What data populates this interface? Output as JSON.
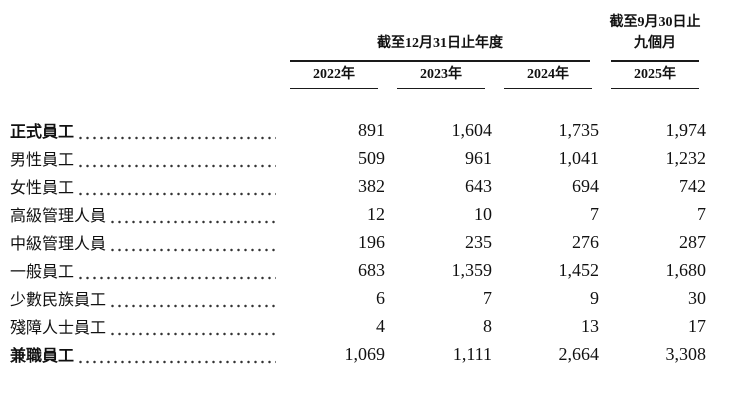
{
  "table": {
    "header": {
      "annual_group_title": "截至12月31日止年度",
      "interim_group_line1": "截至9月30日止",
      "interim_group_line2": "九個月",
      "years": [
        "2022年",
        "2023年",
        "2024年",
        "2025年"
      ]
    },
    "rows": [
      {
        "label": "正式員工",
        "bold": true,
        "values": [
          "891",
          "1,604",
          "1,735",
          "1,974"
        ]
      },
      {
        "label": "男性員工",
        "bold": false,
        "values": [
          "509",
          "961",
          "1,041",
          "1,232"
        ]
      },
      {
        "label": "女性員工",
        "bold": false,
        "values": [
          "382",
          "643",
          "694",
          "742"
        ]
      },
      {
        "label": "高級管理人員",
        "bold": false,
        "values": [
          "12",
          "10",
          "7",
          "7"
        ]
      },
      {
        "label": "中級管理人員",
        "bold": false,
        "values": [
          "196",
          "235",
          "276",
          "287"
        ]
      },
      {
        "label": "一般員工",
        "bold": false,
        "values": [
          "683",
          "1,359",
          "1,452",
          "1,680"
        ]
      },
      {
        "label": "少數民族員工",
        "bold": false,
        "values": [
          "6",
          "7",
          "9",
          "30"
        ]
      },
      {
        "label": "殘障人士員工",
        "bold": false,
        "values": [
          "4",
          "8",
          "13",
          "17"
        ]
      },
      {
        "label": "兼職員工",
        "bold": true,
        "values": [
          "1,069",
          "1,111",
          "2,664",
          "3,308"
        ]
      }
    ]
  }
}
